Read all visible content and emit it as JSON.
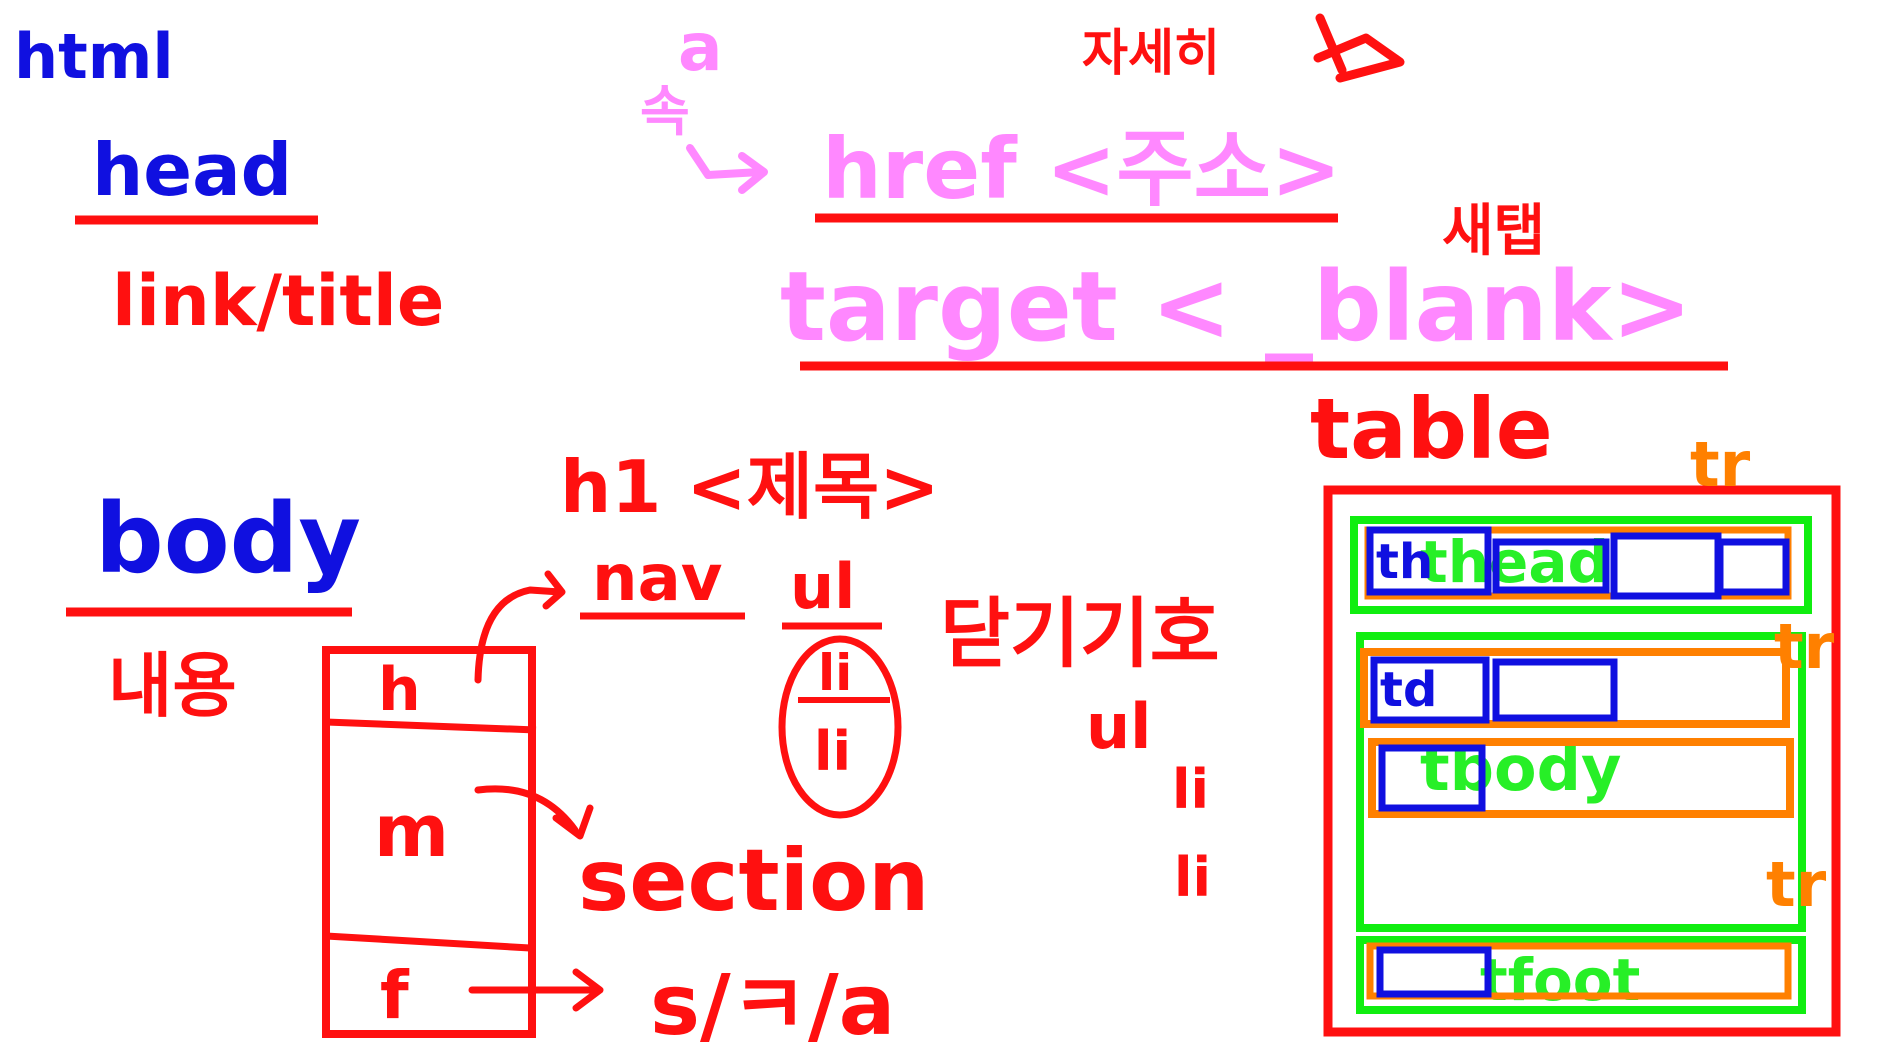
{
  "colors": {
    "blue": "#1010e0",
    "red": "#ff1010",
    "pink": "#ff88ff",
    "orange": "#ff8000",
    "green": "#10ee10"
  },
  "labels": {
    "html": "html",
    "head": "head",
    "head_children": "link/title",
    "a_tag": "a",
    "a_korean": "속",
    "href": "href <주소>",
    "korean_top": "자세히",
    "target": "target < _blank>",
    "korean_new_tab": "새탭",
    "table": "table",
    "body": "body",
    "body_korean": "내용",
    "h1": "h1 <제목>",
    "nav": "nav",
    "ul": "ul",
    "li_1": "li",
    "li_2": "li",
    "closed_korean": "닫기기호",
    "ul_2": "ul",
    "li_3": "li",
    "li_4": "li",
    "box_h": "h",
    "box_m": "m",
    "box_f": "f",
    "section": "section",
    "footer_note": "s/ㅋ/a",
    "tr_1": "tr",
    "tr_2": "tr",
    "tr_3": "tr",
    "th": "th",
    "thead": "thead",
    "td": "td",
    "tbody": "tbody",
    "tfoot": "tfoot"
  }
}
